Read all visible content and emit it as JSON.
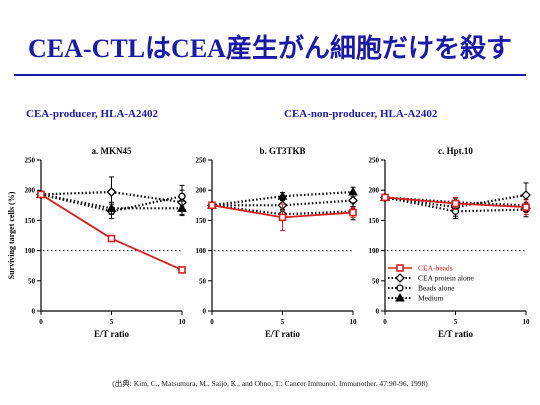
{
  "slide": {
    "title": "CEA-CTLはCEA産生がん細胞だけを殺す",
    "group_left": "CEA-producer, HLA-A2402",
    "group_right": "CEA-non-producer, HLA-A2402",
    "citation": "(出典: Kim, C., Matsumura, M., Saijo, K., and Ohno, T.: Cancer Immunol. Immunother. 47:90-96, 1998)"
  },
  "colors": {
    "title": "#1a1aa6",
    "cea_beads": "#d42020",
    "other": "#000000",
    "baseline": "#000000"
  },
  "chart_data": [
    {
      "type": "line",
      "title": "a. MKN45",
      "xlabel": "E/T ratio",
      "ylabel": "Surviving target cells (%)",
      "x": [
        0,
        5,
        10
      ],
      "xlim": [
        0,
        10
      ],
      "ylim": [
        0,
        250
      ],
      "yticks": [
        0,
        50,
        100,
        150,
        200,
        250
      ],
      "xticks": [
        0,
        5,
        10
      ],
      "reference_line": 100,
      "series": [
        {
          "name": "CEA-beads",
          "values": [
            193,
            120,
            68
          ],
          "error": [
            0,
            5,
            4
          ],
          "marker": "square",
          "style": "solid"
        },
        {
          "name": "CEA protein alone",
          "values": [
            193,
            197,
            180
          ],
          "error": [
            0,
            25,
            20
          ],
          "marker": "diamond",
          "style": "dotted"
        },
        {
          "name": "Beads alone",
          "values": [
            193,
            165,
            190
          ],
          "error": [
            0,
            12,
            18
          ],
          "marker": "circle",
          "style": "dotted"
        },
        {
          "name": "Medium",
          "values": [
            193,
            170,
            170
          ],
          "error": [
            0,
            10,
            12
          ],
          "marker": "triangle",
          "style": "dotted"
        }
      ]
    },
    {
      "type": "line",
      "title": "b. GT3TKB",
      "xlabel": "E/T ratio",
      "x": [
        0,
        5,
        10
      ],
      "xlim": [
        0,
        10
      ],
      "ylim": [
        0,
        250
      ],
      "yticks": [
        0,
        50,
        100,
        150,
        200,
        250
      ],
      "xticks": [
        0,
        5,
        10
      ],
      "reference_line": 100,
      "series": [
        {
          "name": "CEA-beads",
          "values": [
            175,
            155,
            163
          ],
          "error": [
            0,
            22,
            8
          ],
          "marker": "square",
          "style": "solid"
        },
        {
          "name": "CEA protein alone",
          "values": [
            175,
            175,
            183
          ],
          "error": [
            0,
            8,
            10
          ],
          "marker": "diamond",
          "style": "dotted"
        },
        {
          "name": "Beads alone",
          "values": [
            175,
            160,
            165
          ],
          "error": [
            0,
            8,
            14
          ],
          "marker": "circle",
          "style": "dotted"
        },
        {
          "name": "Medium",
          "values": [
            175,
            190,
            197
          ],
          "error": [
            0,
            6,
            8
          ],
          "marker": "triangle",
          "style": "dotted"
        }
      ]
    },
    {
      "type": "line",
      "title": "c. Hpt.10",
      "xlabel": "E/T ratio",
      "x": [
        0,
        5,
        10
      ],
      "xlim": [
        0,
        10
      ],
      "ylim": [
        0,
        250
      ],
      "yticks": [
        0,
        50,
        100,
        150,
        200,
        250
      ],
      "xticks": [
        0,
        5,
        10
      ],
      "reference_line": 100,
      "legend": "bottom",
      "series": [
        {
          "name": "CEA-beads",
          "values": [
            188,
            178,
            172
          ],
          "error": [
            0,
            10,
            12
          ],
          "marker": "square",
          "style": "solid"
        },
        {
          "name": "CEA protein alone",
          "values": [
            188,
            172,
            192
          ],
          "error": [
            0,
            15,
            20
          ],
          "marker": "diamond",
          "style": "dotted"
        },
        {
          "name": "Beads alone",
          "values": [
            188,
            165,
            168
          ],
          "error": [
            0,
            12,
            12
          ],
          "marker": "circle",
          "style": "dotted"
        },
        {
          "name": "Medium",
          "values": [
            188,
            180,
            175
          ],
          "error": [
            0,
            8,
            10
          ],
          "marker": "triangle",
          "style": "dotted"
        }
      ]
    }
  ]
}
